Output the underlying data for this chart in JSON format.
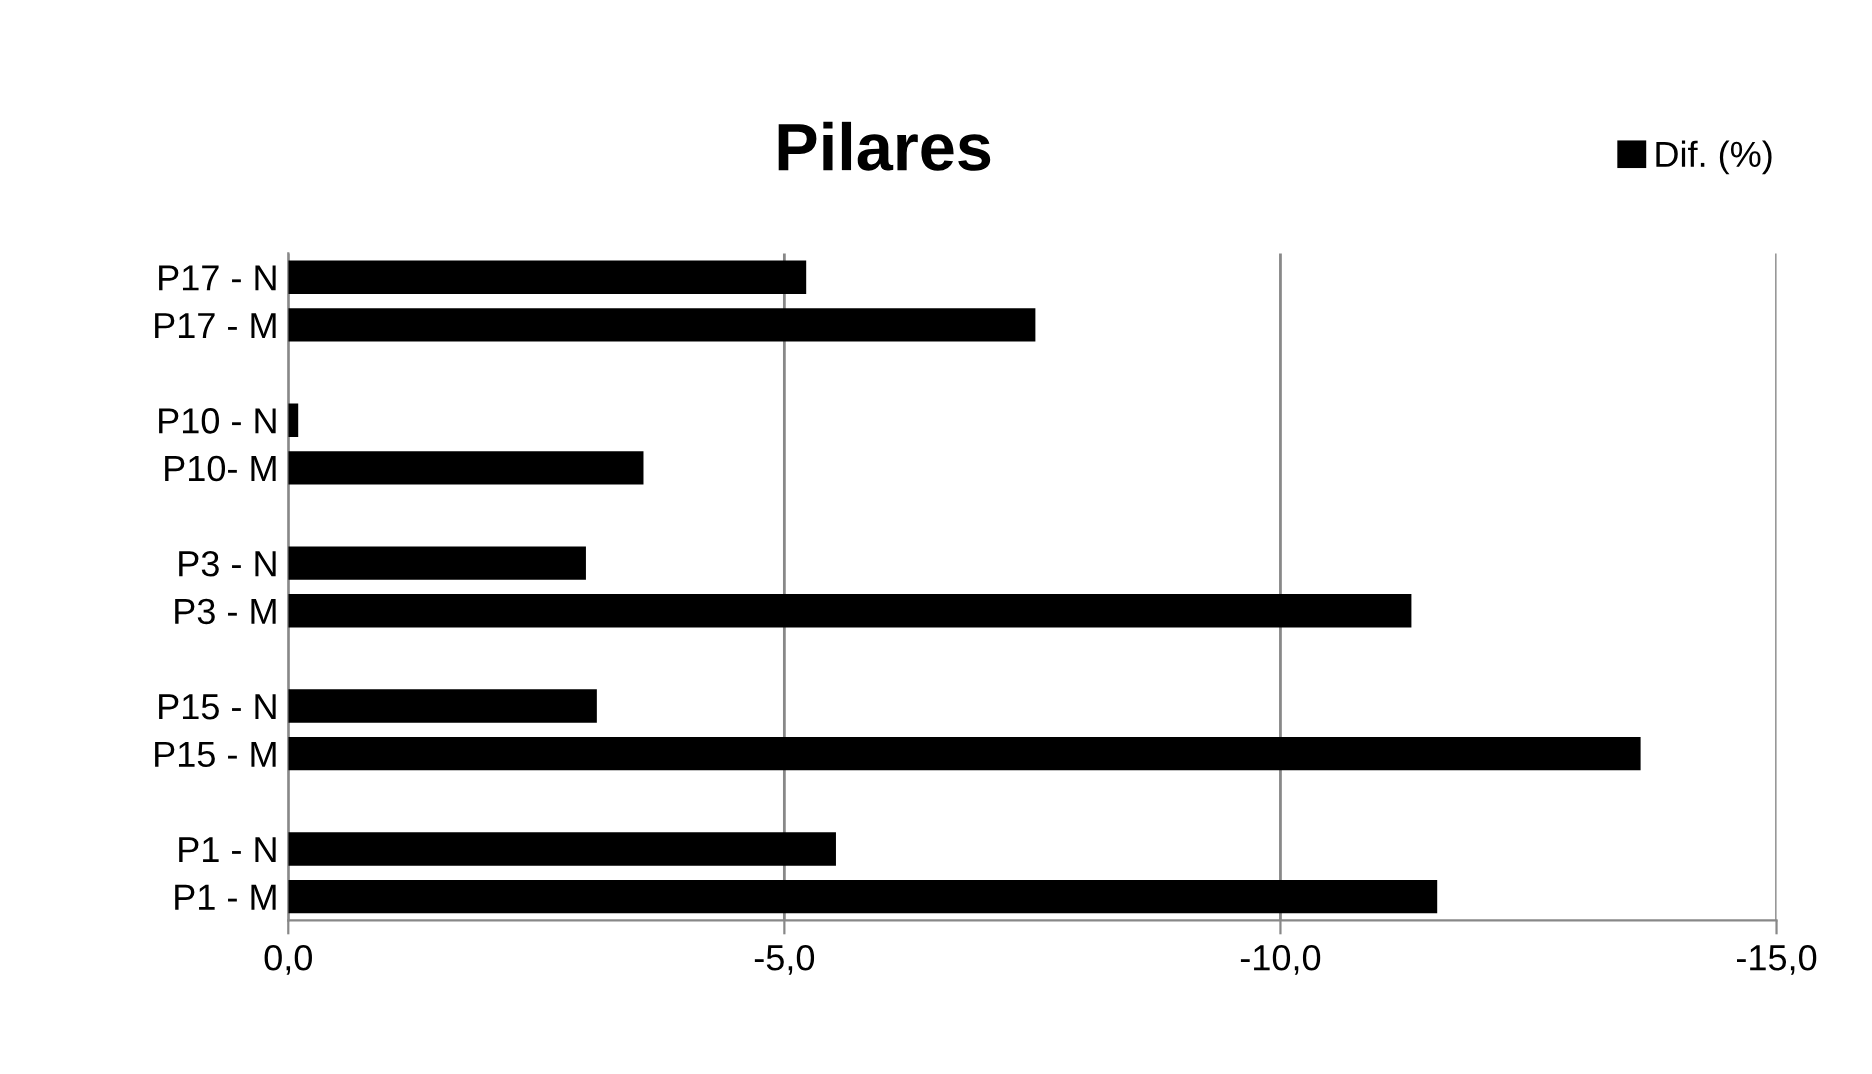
{
  "chart_data": {
    "type": "bar",
    "orientation": "horizontal",
    "title": "Pilares",
    "categories": [
      "P17 - N",
      "P17 - M",
      null,
      "P10 - N",
      "P10- M",
      null,
      "P3 - N",
      "P3 - M",
      null,
      "P15 - N",
      "P15 - M",
      null,
      "P1 - N",
      "P1 - M"
    ],
    "series": [
      {
        "name": "Dif. (%)",
        "color": "#000000",
        "values": [
          -5.22,
          -7.53,
          null,
          -0.1,
          -3.58,
          null,
          -3.0,
          -11.32,
          null,
          -3.11,
          -13.63,
          null,
          -5.52,
          -11.58
        ]
      }
    ],
    "xlim": [
      0,
      -15
    ],
    "xticks": [
      {
        "value": 0,
        "label": "0,0"
      },
      {
        "value": -5,
        "label": "-5,0"
      },
      {
        "value": -10,
        "label": "-10,0"
      },
      {
        "value": -15,
        "label": "-15,0"
      }
    ],
    "grid": "x",
    "legend": "top right"
  }
}
